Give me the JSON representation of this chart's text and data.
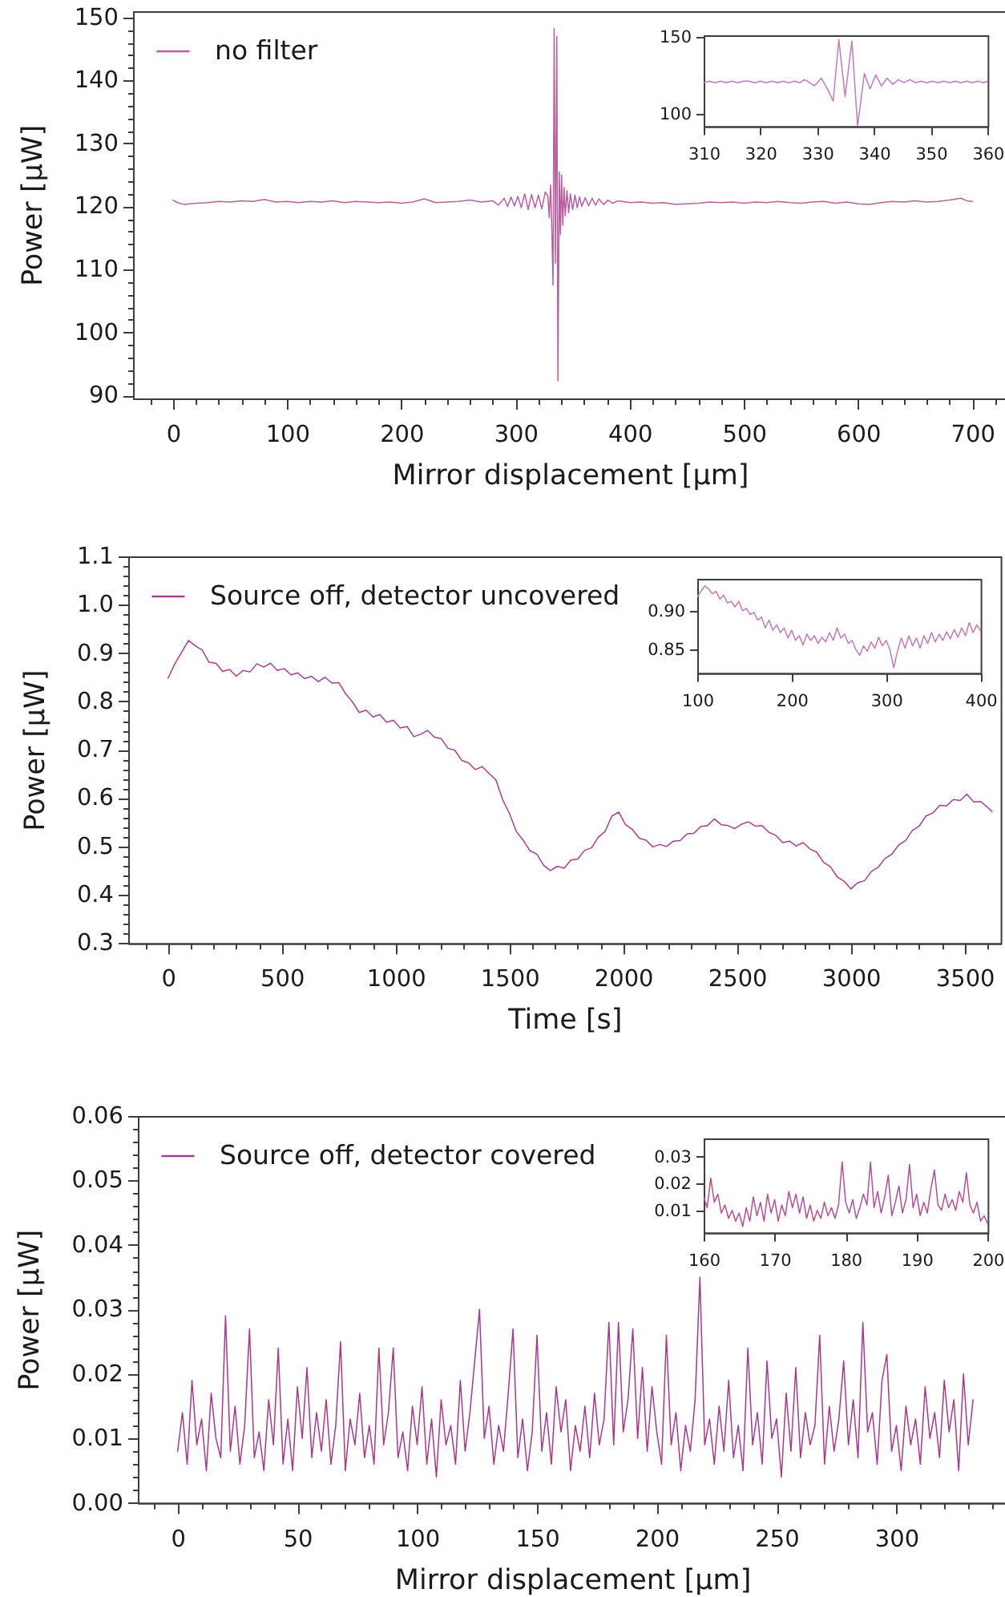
{
  "chart_data": [
    {
      "type": "line",
      "xlabel": "Mirror displacement [μm]",
      "ylabel": "Power [μW]",
      "legend": "top left",
      "xlim": [
        -35,
        730
      ],
      "ylim": [
        89.5,
        151
      ],
      "xticks": [
        {
          "value": -20,
          "label": null
        },
        0,
        {
          "value": 20,
          "label": null
        },
        {
          "value": 40,
          "label": null
        },
        {
          "value": 60,
          "label": null
        },
        {
          "value": 80,
          "label": null
        },
        100,
        {
          "value": 120,
          "label": null
        },
        {
          "value": 140,
          "label": null
        },
        {
          "value": 160,
          "label": null
        },
        {
          "value": 180,
          "label": null
        },
        200,
        {
          "value": 220,
          "label": null
        },
        {
          "value": 240,
          "label": null
        },
        {
          "value": 260,
          "label": null
        },
        {
          "value": 280,
          "label": null
        },
        300,
        {
          "value": 320,
          "label": null
        },
        {
          "value": 340,
          "label": null
        },
        {
          "value": 360,
          "label": null
        },
        {
          "value": 380,
          "label": null
        },
        400,
        {
          "value": 420,
          "label": null
        },
        {
          "value": 440,
          "label": null
        },
        {
          "value": 460,
          "label": null
        },
        {
          "value": 480,
          "label": null
        },
        500,
        {
          "value": 520,
          "label": null
        },
        {
          "value": 540,
          "label": null
        },
        {
          "value": 560,
          "label": null
        },
        {
          "value": 580,
          "label": null
        },
        600,
        {
          "value": 620,
          "label": null
        },
        {
          "value": 640,
          "label": null
        },
        {
          "value": 660,
          "label": null
        },
        {
          "value": 680,
          "label": null
        },
        700,
        {
          "value": 720,
          "label": null
        }
      ],
      "yticks": [
        90,
        {
          "value": 92,
          "label": null
        },
        {
          "value": 94,
          "label": null
        },
        {
          "value": 96,
          "label": null
        },
        {
          "value": 98,
          "label": null
        },
        100,
        {
          "value": 102,
          "label": null
        },
        {
          "value": 104,
          "label": null
        },
        {
          "value": 106,
          "label": null
        },
        {
          "value": 108,
          "label": null
        },
        110,
        {
          "value": 112,
          "label": null
        },
        {
          "value": 114,
          "label": null
        },
        {
          "value": 116,
          "label": null
        },
        {
          "value": 118,
          "label": null
        },
        120,
        {
          "value": 122,
          "label": null
        },
        {
          "value": 124,
          "label": null
        },
        {
          "value": 126,
          "label": null
        },
        {
          "value": 128,
          "label": null
        },
        130,
        {
          "value": 132,
          "label": null
        },
        {
          "value": 134,
          "label": null
        },
        {
          "value": 136,
          "label": null
        },
        {
          "value": 138,
          "label": null
        },
        140,
        {
          "value": 142,
          "label": null
        },
        {
          "value": 144,
          "label": null
        },
        {
          "value": 146,
          "label": null
        },
        {
          "value": 148,
          "label": null
        },
        150
      ],
      "x": [
        0,
        4,
        10,
        20,
        30,
        40,
        50,
        60,
        70,
        80,
        90,
        100,
        110,
        120,
        130,
        140,
        150,
        160,
        170,
        180,
        190,
        200,
        210,
        220,
        230,
        240,
        250,
        260,
        270,
        280,
        285,
        290,
        293,
        296,
        299,
        302,
        305,
        308,
        311,
        314,
        317,
        320,
        323,
        326,
        328.3,
        329.5,
        330.7,
        331.8,
        332.8,
        333.8,
        334.9,
        336.1,
        337.1,
        338.3,
        339.3,
        340.3,
        341.3,
        342.5,
        343.5,
        345,
        346.5,
        348,
        350,
        352,
        354,
        356,
        358,
        361,
        364,
        367,
        370,
        373,
        377,
        381,
        385,
        390,
        400,
        410,
        420,
        430,
        440,
        450,
        460,
        470,
        480,
        490,
        500,
        510,
        520,
        530,
        540,
        550,
        560,
        570,
        580,
        590,
        600,
        610,
        620,
        630,
        640,
        650,
        660,
        670,
        680,
        690,
        695,
        700
      ],
      "series": [
        {
          "name": "no filter",
          "color": "#b8609f",
          "values": [
            121.0,
            120.6,
            120.3,
            120.5,
            120.6,
            120.8,
            120.7,
            120.9,
            120.8,
            121.1,
            120.7,
            120.8,
            120.6,
            120.8,
            120.7,
            120.9,
            120.6,
            120.8,
            120.7,
            120.6,
            120.7,
            120.5,
            120.7,
            121.2,
            120.6,
            120.7,
            120.8,
            121.0,
            120.7,
            120.9,
            120.2,
            121.3,
            120.0,
            121.5,
            120.1,
            121.6,
            119.8,
            122.0,
            119.5,
            121.9,
            119.8,
            121.8,
            119.6,
            122.3,
            121.6,
            118.2,
            123.4,
            116.0,
            107.5,
            148.3,
            111.0,
            147.0,
            92.3,
            125.5,
            115.5,
            125.0,
            117.0,
            123.0,
            118.5,
            122.5,
            119.0,
            122.0,
            119.5,
            121.8,
            119.8,
            121.5,
            120.0,
            121.4,
            120.1,
            121.3,
            120.2,
            121.2,
            120.3,
            121.0,
            120.5,
            120.9,
            120.6,
            120.7,
            120.5,
            120.6,
            120.3,
            120.4,
            120.5,
            120.7,
            120.6,
            120.7,
            120.5,
            120.7,
            120.6,
            120.8,
            120.6,
            120.5,
            120.7,
            120.8,
            120.5,
            120.7,
            120.4,
            120.3,
            120.6,
            120.8,
            120.7,
            120.9,
            120.7,
            120.8,
            121.0,
            121.3,
            120.9,
            120.8
          ]
        }
      ]
    },
    {
      "type": "line",
      "xlim": [
        310,
        360
      ],
      "ylim": [
        91.7,
        150.8
      ],
      "xticks": [
        310,
        320,
        330,
        340,
        350,
        360
      ],
      "yticks": [
        100,
        150
      ],
      "x": [
        310,
        311,
        312,
        313,
        314,
        315,
        316,
        317,
        318,
        319,
        320,
        321,
        322,
        323,
        324,
        325,
        326,
        327,
        327.7,
        328.3,
        329.5,
        330.7,
        331.8,
        332.8,
        333.8,
        334.9,
        336.1,
        337.1,
        338.3,
        339.3,
        340.3,
        341.3,
        342.3,
        343.3,
        344.3,
        345.3,
        346.3,
        347.3,
        348.3,
        349.3,
        350.3,
        351.3,
        352.3,
        353.3,
        354.3,
        355.3,
        356.3,
        357.3,
        358.3,
        359.3,
        360
      ],
      "series": [
        {
          "color": "#c07ab5",
          "values": [
            120,
            121,
            120,
            121,
            120,
            121,
            120,
            121,
            121,
            120,
            121,
            120,
            121,
            120,
            121,
            120,
            121,
            120,
            122,
            121,
            118,
            123,
            116,
            108,
            148,
            111,
            147,
            92,
            126,
            116,
            125,
            118,
            123,
            119,
            122,
            120,
            122,
            120,
            121,
            120,
            121,
            120,
            121,
            120,
            121,
            120,
            121,
            120,
            121,
            120,
            121
          ]
        }
      ]
    },
    {
      "type": "line",
      "xlabel": "Time [s]",
      "ylabel": "Power [μW]",
      "legend": "top left",
      "xlim": [
        -175,
        3658
      ],
      "ylim": [
        0.3,
        1.1
      ],
      "xticks": [
        {
          "value": -100,
          "label": null
        },
        0,
        {
          "value": 100,
          "label": null
        },
        {
          "value": 200,
          "label": null
        },
        {
          "value": 300,
          "label": null
        },
        {
          "value": 400,
          "label": null
        },
        500,
        {
          "value": 600,
          "label": null
        },
        {
          "value": 700,
          "label": null
        },
        {
          "value": 800,
          "label": null
        },
        {
          "value": 900,
          "label": null
        },
        1000,
        {
          "value": 1100,
          "label": null
        },
        {
          "value": 1200,
          "label": null
        },
        {
          "value": 1300,
          "label": null
        },
        {
          "value": 1400,
          "label": null
        },
        1500,
        {
          "value": 1600,
          "label": null
        },
        {
          "value": 1700,
          "label": null
        },
        {
          "value": 1800,
          "label": null
        },
        {
          "value": 1900,
          "label": null
        },
        2000,
        {
          "value": 2100,
          "label": null
        },
        {
          "value": 2200,
          "label": null
        },
        {
          "value": 2300,
          "label": null
        },
        {
          "value": 2400,
          "label": null
        },
        2500,
        {
          "value": 2600,
          "label": null
        },
        {
          "value": 2700,
          "label": null
        },
        {
          "value": 2800,
          "label": null
        },
        {
          "value": 2900,
          "label": null
        },
        3000,
        {
          "value": 3100,
          "label": null
        },
        {
          "value": 3200,
          "label": null
        },
        {
          "value": 3300,
          "label": null
        },
        {
          "value": 3400,
          "label": null
        },
        3500,
        {
          "value": 3600,
          "label": null
        }
      ],
      "yticks": [
        0.3,
        {
          "value": 0.32,
          "label": null
        },
        {
          "value": 0.34,
          "label": null
        },
        {
          "value": 0.36,
          "label": null
        },
        {
          "value": 0.38,
          "label": null
        },
        0.4,
        {
          "value": 0.42,
          "label": null
        },
        {
          "value": 0.44,
          "label": null
        },
        {
          "value": 0.46,
          "label": null
        },
        {
          "value": 0.48,
          "label": null
        },
        0.5,
        {
          "value": 0.52,
          "label": null
        },
        {
          "value": 0.54,
          "label": null
        },
        {
          "value": 0.56,
          "label": null
        },
        {
          "value": 0.58,
          "label": null
        },
        0.6,
        {
          "value": 0.62,
          "label": null
        },
        {
          "value": 0.64,
          "label": null
        },
        {
          "value": 0.66,
          "label": null
        },
        {
          "value": 0.68,
          "label": null
        },
        0.7,
        {
          "value": 0.72,
          "label": null
        },
        {
          "value": 0.74,
          "label": null
        },
        {
          "value": 0.76,
          "label": null
        },
        {
          "value": 0.78,
          "label": null
        },
        0.8,
        {
          "value": 0.82,
          "label": null
        },
        {
          "value": 0.84,
          "label": null
        },
        {
          "value": 0.86,
          "label": null
        },
        {
          "value": 0.88,
          "label": null
        },
        0.9,
        {
          "value": 0.92,
          "label": null
        },
        {
          "value": 0.94,
          "label": null
        },
        {
          "value": 0.96,
          "label": null
        },
        {
          "value": 0.98,
          "label": null
        },
        {
          "value": 1,
          "label": "1.0"
        },
        {
          "value": 1.02,
          "label": null
        },
        {
          "value": 1.04,
          "label": null
        },
        {
          "value": 1.06,
          "label": null
        },
        {
          "value": 1.08,
          "label": null
        },
        1.1
      ],
      "x": [
        0,
        30,
        60,
        90,
        120,
        150,
        180,
        210,
        240,
        270,
        300,
        330,
        360,
        390,
        420,
        450,
        480,
        510,
        540,
        570,
        600,
        630,
        660,
        690,
        720,
        750,
        780,
        810,
        840,
        870,
        900,
        930,
        960,
        990,
        1020,
        1050,
        1080,
        1110,
        1140,
        1170,
        1200,
        1230,
        1260,
        1290,
        1320,
        1350,
        1380,
        1410,
        1440,
        1470,
        1500,
        1530,
        1560,
        1590,
        1620,
        1650,
        1680,
        1710,
        1740,
        1770,
        1800,
        1830,
        1860,
        1890,
        1920,
        1950,
        1980,
        2010,
        2040,
        2070,
        2100,
        2130,
        2160,
        2190,
        2220,
        2250,
        2280,
        2310,
        2340,
        2370,
        2400,
        2430,
        2460,
        2490,
        2520,
        2550,
        2580,
        2610,
        2640,
        2670,
        2700,
        2730,
        2760,
        2790,
        2820,
        2850,
        2880,
        2910,
        2940,
        2970,
        3000,
        3030,
        3060,
        3090,
        3120,
        3150,
        3180,
        3210,
        3240,
        3270,
        3300,
        3330,
        3360,
        3390,
        3420,
        3450,
        3480,
        3510,
        3540,
        3570,
        3600,
        3620
      ],
      "series": [
        {
          "name": "Source off, detector uncovered",
          "color": "#a8408f",
          "values": [
            0.848,
            0.878,
            0.902,
            0.926,
            0.915,
            0.906,
            0.881,
            0.879,
            0.862,
            0.866,
            0.852,
            0.864,
            0.861,
            0.878,
            0.871,
            0.879,
            0.864,
            0.868,
            0.855,
            0.859,
            0.847,
            0.852,
            0.841,
            0.85,
            0.838,
            0.839,
            0.816,
            0.799,
            0.777,
            0.782,
            0.768,
            0.773,
            0.757,
            0.761,
            0.745,
            0.748,
            0.727,
            0.732,
            0.74,
            0.726,
            0.723,
            0.703,
            0.699,
            0.678,
            0.673,
            0.659,
            0.665,
            0.651,
            0.638,
            0.597,
            0.568,
            0.531,
            0.513,
            0.491,
            0.484,
            0.461,
            0.45,
            0.459,
            0.455,
            0.472,
            0.474,
            0.492,
            0.497,
            0.519,
            0.531,
            0.563,
            0.571,
            0.545,
            0.535,
            0.517,
            0.513,
            0.499,
            0.504,
            0.5,
            0.511,
            0.512,
            0.526,
            0.527,
            0.541,
            0.543,
            0.557,
            0.545,
            0.543,
            0.537,
            0.546,
            0.551,
            0.542,
            0.543,
            0.529,
            0.523,
            0.508,
            0.511,
            0.501,
            0.508,
            0.495,
            0.488,
            0.467,
            0.458,
            0.437,
            0.428,
            0.412,
            0.425,
            0.429,
            0.448,
            0.457,
            0.475,
            0.484,
            0.503,
            0.512,
            0.533,
            0.542,
            0.563,
            0.569,
            0.585,
            0.584,
            0.597,
            0.595,
            0.608,
            0.592,
            0.593,
            0.581,
            0.572
          ]
        }
      ]
    },
    {
      "type": "line",
      "xlim": [
        100,
        400
      ],
      "ylim": [
        0.82,
        0.941
      ],
      "xticks": [
        100,
        200,
        300,
        400
      ],
      "yticks": [
        0.85,
        {
          "value": 0.9,
          "label": "0.90"
        }
      ],
      "x": [
        100,
        104,
        108,
        112,
        116,
        120,
        124,
        128,
        132,
        136,
        140,
        144,
        148,
        152,
        156,
        160,
        164,
        168,
        172,
        176,
        180,
        184,
        188,
        192,
        196,
        200,
        204,
        208,
        212,
        216,
        220,
        224,
        228,
        232,
        236,
        240,
        244,
        248,
        252,
        256,
        260,
        264,
        268,
        272,
        276,
        280,
        284,
        288,
        292,
        296,
        300,
        304,
        308,
        312,
        316,
        320,
        324,
        328,
        332,
        336,
        340,
        344,
        348,
        352,
        356,
        360,
        364,
        368,
        372,
        376,
        380,
        384,
        388,
        392,
        396,
        400
      ],
      "series": [
        {
          "color": "#c07ab5",
          "values": [
            0.918,
            0.925,
            0.932,
            0.928,
            0.922,
            0.925,
            0.915,
            0.92,
            0.91,
            0.912,
            0.905,
            0.912,
            0.9,
            0.903,
            0.895,
            0.898,
            0.888,
            0.892,
            0.878,
            0.888,
            0.875,
            0.882,
            0.872,
            0.878,
            0.865,
            0.875,
            0.862,
            0.868,
            0.856,
            0.87,
            0.862,
            0.868,
            0.858,
            0.866,
            0.86,
            0.872,
            0.862,
            0.878,
            0.865,
            0.87,
            0.858,
            0.862,
            0.85,
            0.843,
            0.855,
            0.848,
            0.86,
            0.852,
            0.866,
            0.855,
            0.862,
            0.85,
            0.827,
            0.848,
            0.865,
            0.852,
            0.868,
            0.855,
            0.865,
            0.852,
            0.868,
            0.858,
            0.872,
            0.86,
            0.87,
            0.862,
            0.873,
            0.864,
            0.876,
            0.866,
            0.878,
            0.868,
            0.885,
            0.872,
            0.882,
            0.874
          ]
        }
      ]
    },
    {
      "type": "line",
      "xlabel": "Mirror displacement [μm]",
      "ylabel": "Power [μW]",
      "legend": "top left",
      "xlim": [
        -16.6,
        346
      ],
      "ylim": [
        0,
        0.06
      ],
      "xticks": [
        {
          "value": -10,
          "label": null
        },
        0,
        {
          "value": 10,
          "label": null
        },
        {
          "value": 20,
          "label": null
        },
        {
          "value": 30,
          "label": null
        },
        {
          "value": 40,
          "label": null
        },
        50,
        {
          "value": 60,
          "label": null
        },
        {
          "value": 70,
          "label": null
        },
        {
          "value": 80,
          "label": null
        },
        {
          "value": 90,
          "label": null
        },
        100,
        {
          "value": 110,
          "label": null
        },
        {
          "value": 120,
          "label": null
        },
        {
          "value": 130,
          "label": null
        },
        {
          "value": 140,
          "label": null
        },
        150,
        {
          "value": 160,
          "label": null
        },
        {
          "value": 170,
          "label": null
        },
        {
          "value": 180,
          "label": null
        },
        {
          "value": 190,
          "label": null
        },
        200,
        {
          "value": 210,
          "label": null
        },
        {
          "value": 220,
          "label": null
        },
        {
          "value": 230,
          "label": null
        },
        {
          "value": 240,
          "label": null
        },
        250,
        {
          "value": 260,
          "label": null
        },
        {
          "value": 270,
          "label": null
        },
        {
          "value": 280,
          "label": null
        },
        {
          "value": 290,
          "label": null
        },
        300,
        {
          "value": 310,
          "label": null
        },
        {
          "value": 320,
          "label": null
        },
        {
          "value": 330,
          "label": null
        },
        {
          "value": 340,
          "label": null
        }
      ],
      "yticks": [
        {
          "value": 0,
          "label": "0.00"
        },
        {
          "value": 0.002,
          "label": null
        },
        {
          "value": 0.004,
          "label": null
        },
        {
          "value": 0.006,
          "label": null
        },
        {
          "value": 0.008,
          "label": null
        },
        0.01,
        {
          "value": 0.012,
          "label": null
        },
        {
          "value": 0.014,
          "label": null
        },
        {
          "value": 0.016,
          "label": null
        },
        {
          "value": 0.018,
          "label": null
        },
        0.02,
        {
          "value": 0.022,
          "label": null
        },
        {
          "value": 0.024,
          "label": null
        },
        {
          "value": 0.026,
          "label": null
        },
        {
          "value": 0.028,
          "label": null
        },
        0.03,
        {
          "value": 0.032,
          "label": null
        },
        {
          "value": 0.034,
          "label": null
        },
        {
          "value": 0.036,
          "label": null
        },
        {
          "value": 0.038,
          "label": null
        },
        0.04,
        {
          "value": 0.042,
          "label": null
        },
        {
          "value": 0.044,
          "label": null
        },
        {
          "value": 0.046,
          "label": null
        },
        {
          "value": 0.048,
          "label": null
        },
        0.05,
        {
          "value": 0.052,
          "label": null
        },
        {
          "value": 0.054,
          "label": null
        },
        {
          "value": 0.056,
          "label": null
        },
        {
          "value": 0.058,
          "label": null
        },
        0.06
      ],
      "x": [
        0,
        2,
        4,
        6,
        8,
        10,
        12,
        14,
        16,
        18,
        20,
        22,
        24,
        26,
        28,
        30,
        32,
        34,
        36,
        38,
        40,
        42,
        44,
        46,
        48,
        50,
        52,
        54,
        56,
        58,
        60,
        62,
        64,
        66,
        68,
        70,
        72,
        74,
        76,
        78,
        80,
        82,
        84,
        86,
        88,
        90,
        92,
        94,
        96,
        98,
        100,
        102,
        104,
        106,
        108,
        110,
        112,
        114,
        116,
        118,
        120,
        122,
        124,
        126,
        128,
        130,
        132,
        134,
        136,
        138,
        140,
        142,
        144,
        146,
        148,
        150,
        152,
        154,
        156,
        158,
        160,
        162,
        164,
        166,
        168,
        170,
        172,
        174,
        176,
        178,
        180,
        182,
        184,
        186,
        188,
        190,
        192,
        194,
        196,
        198,
        200,
        202,
        204,
        206,
        208,
        210,
        212,
        214,
        216,
        218,
        220,
        222,
        224,
        226,
        228,
        230,
        232,
        234,
        236,
        238,
        240,
        242,
        244,
        246,
        248,
        250,
        252,
        254,
        256,
        258,
        260,
        262,
        264,
        266,
        268,
        270,
        272,
        274,
        276,
        278,
        280,
        282,
        284,
        286,
        288,
        290,
        292,
        294,
        296,
        298,
        300,
        302,
        304,
        306,
        308,
        310,
        312,
        314,
        316,
        318,
        320,
        322,
        324,
        326,
        328,
        330,
        332
      ],
      "series": [
        {
          "name": "Source off, detector covered",
          "color": "#a8388c",
          "values": [
            0.008,
            0.014,
            0.006,
            0.019,
            0.009,
            0.013,
            0.005,
            0.017,
            0.01,
            0.007,
            0.029,
            0.008,
            0.015,
            0.006,
            0.012,
            0.027,
            0.007,
            0.011,
            0.005,
            0.016,
            0.009,
            0.024,
            0.006,
            0.013,
            0.005,
            0.018,
            0.01,
            0.021,
            0.007,
            0.014,
            0.008,
            0.016,
            0.006,
            0.012,
            0.025,
            0.005,
            0.013,
            0.009,
            0.017,
            0.007,
            0.012,
            0.006,
            0.024,
            0.009,
            0.014,
            0.024,
            0.007,
            0.011,
            0.005,
            0.015,
            0.009,
            0.018,
            0.006,
            0.013,
            0.004,
            0.016,
            0.009,
            0.012,
            0.006,
            0.019,
            0.008,
            0.014,
            0.022,
            0.03,
            0.01,
            0.015,
            0.006,
            0.012,
            0.008,
            0.017,
            0.027,
            0.007,
            0.013,
            0.005,
            0.011,
            0.026,
            0.008,
            0.014,
            0.006,
            0.018,
            0.011,
            0.016,
            0.005,
            0.012,
            0.008,
            0.015,
            0.007,
            0.017,
            0.009,
            0.013,
            0.028,
            0.009,
            0.028,
            0.011,
            0.016,
            0.027,
            0.01,
            0.021,
            0.008,
            0.018,
            0.011,
            0.006,
            0.026,
            0.009,
            0.014,
            0.005,
            0.012,
            0.008,
            0.016,
            0.035,
            0.009,
            0.013,
            0.006,
            0.015,
            0.008,
            0.019,
            0.007,
            0.012,
            0.005,
            0.024,
            0.009,
            0.014,
            0.006,
            0.022,
            0.01,
            0.013,
            0.004,
            0.017,
            0.008,
            0.021,
            0.007,
            0.014,
            0.009,
            0.012,
            0.026,
            0.006,
            0.015,
            0.008,
            0.013,
            0.022,
            0.009,
            0.016,
            0.007,
            0.028,
            0.011,
            0.014,
            0.006,
            0.019,
            0.023,
            0.008,
            0.012,
            0.005,
            0.015,
            0.009,
            0.013,
            0.006,
            0.018,
            0.01,
            0.014,
            0.007,
            0.019,
            0.011,
            0.016,
            0.005,
            0.02,
            0.009,
            0.016
          ]
        }
      ]
    },
    {
      "type": "line",
      "xlim": [
        160,
        200
      ],
      "ylim": [
        0.0017,
        0.0367
      ],
      "xticks": [
        160,
        170,
        180,
        190,
        200
      ],
      "yticks": [
        0.01,
        0.02,
        0.03
      ],
      "x": [
        160,
        160.5,
        161,
        161.5,
        162,
        162.5,
        163,
        163.5,
        164,
        164.5,
        165,
        165.5,
        166,
        166.5,
        167,
        167.5,
        168,
        168.5,
        169,
        169.5,
        170,
        170.5,
        171,
        171.5,
        172,
        172.5,
        173,
        173.5,
        174,
        174.5,
        175,
        175.5,
        176,
        176.5,
        177,
        177.5,
        178,
        178.5,
        179,
        179.5,
        180,
        180.5,
        181,
        181.5,
        182,
        182.5,
        183,
        183.5,
        184,
        184.5,
        185,
        185.5,
        186,
        186.5,
        187,
        187.5,
        188,
        188.5,
        189,
        189.5,
        190,
        190.5,
        191,
        191.5,
        192,
        192.5,
        193,
        193.5,
        194,
        194.5,
        195,
        195.5,
        196,
        196.5,
        197,
        197.5,
        198,
        198.5,
        199,
        199.5,
        200
      ],
      "series": [
        {
          "color": "#b04f98",
          "values": [
            0.015,
            0.011,
            0.022,
            0.013,
            0.016,
            0.009,
            0.012,
            0.007,
            0.01,
            0.006,
            0.009,
            0.004,
            0.011,
            0.006,
            0.015,
            0.008,
            0.013,
            0.006,
            0.016,
            0.009,
            0.014,
            0.006,
            0.012,
            0.008,
            0.017,
            0.011,
            0.016,
            0.009,
            0.015,
            0.007,
            0.012,
            0.006,
            0.01,
            0.007,
            0.013,
            0.008,
            0.011,
            0.007,
            0.012,
            0.028,
            0.013,
            0.009,
            0.014,
            0.007,
            0.011,
            0.016,
            0.012,
            0.028,
            0.011,
            0.017,
            0.009,
            0.015,
            0.023,
            0.008,
            0.013,
            0.019,
            0.009,
            0.014,
            0.027,
            0.011,
            0.016,
            0.008,
            0.013,
            0.009,
            0.018,
            0.025,
            0.012,
            0.01,
            0.016,
            0.011,
            0.014,
            0.01,
            0.017,
            0.013,
            0.024,
            0.012,
            0.009,
            0.013,
            0.006,
            0.008,
            0.005
          ]
        }
      ]
    }
  ]
}
